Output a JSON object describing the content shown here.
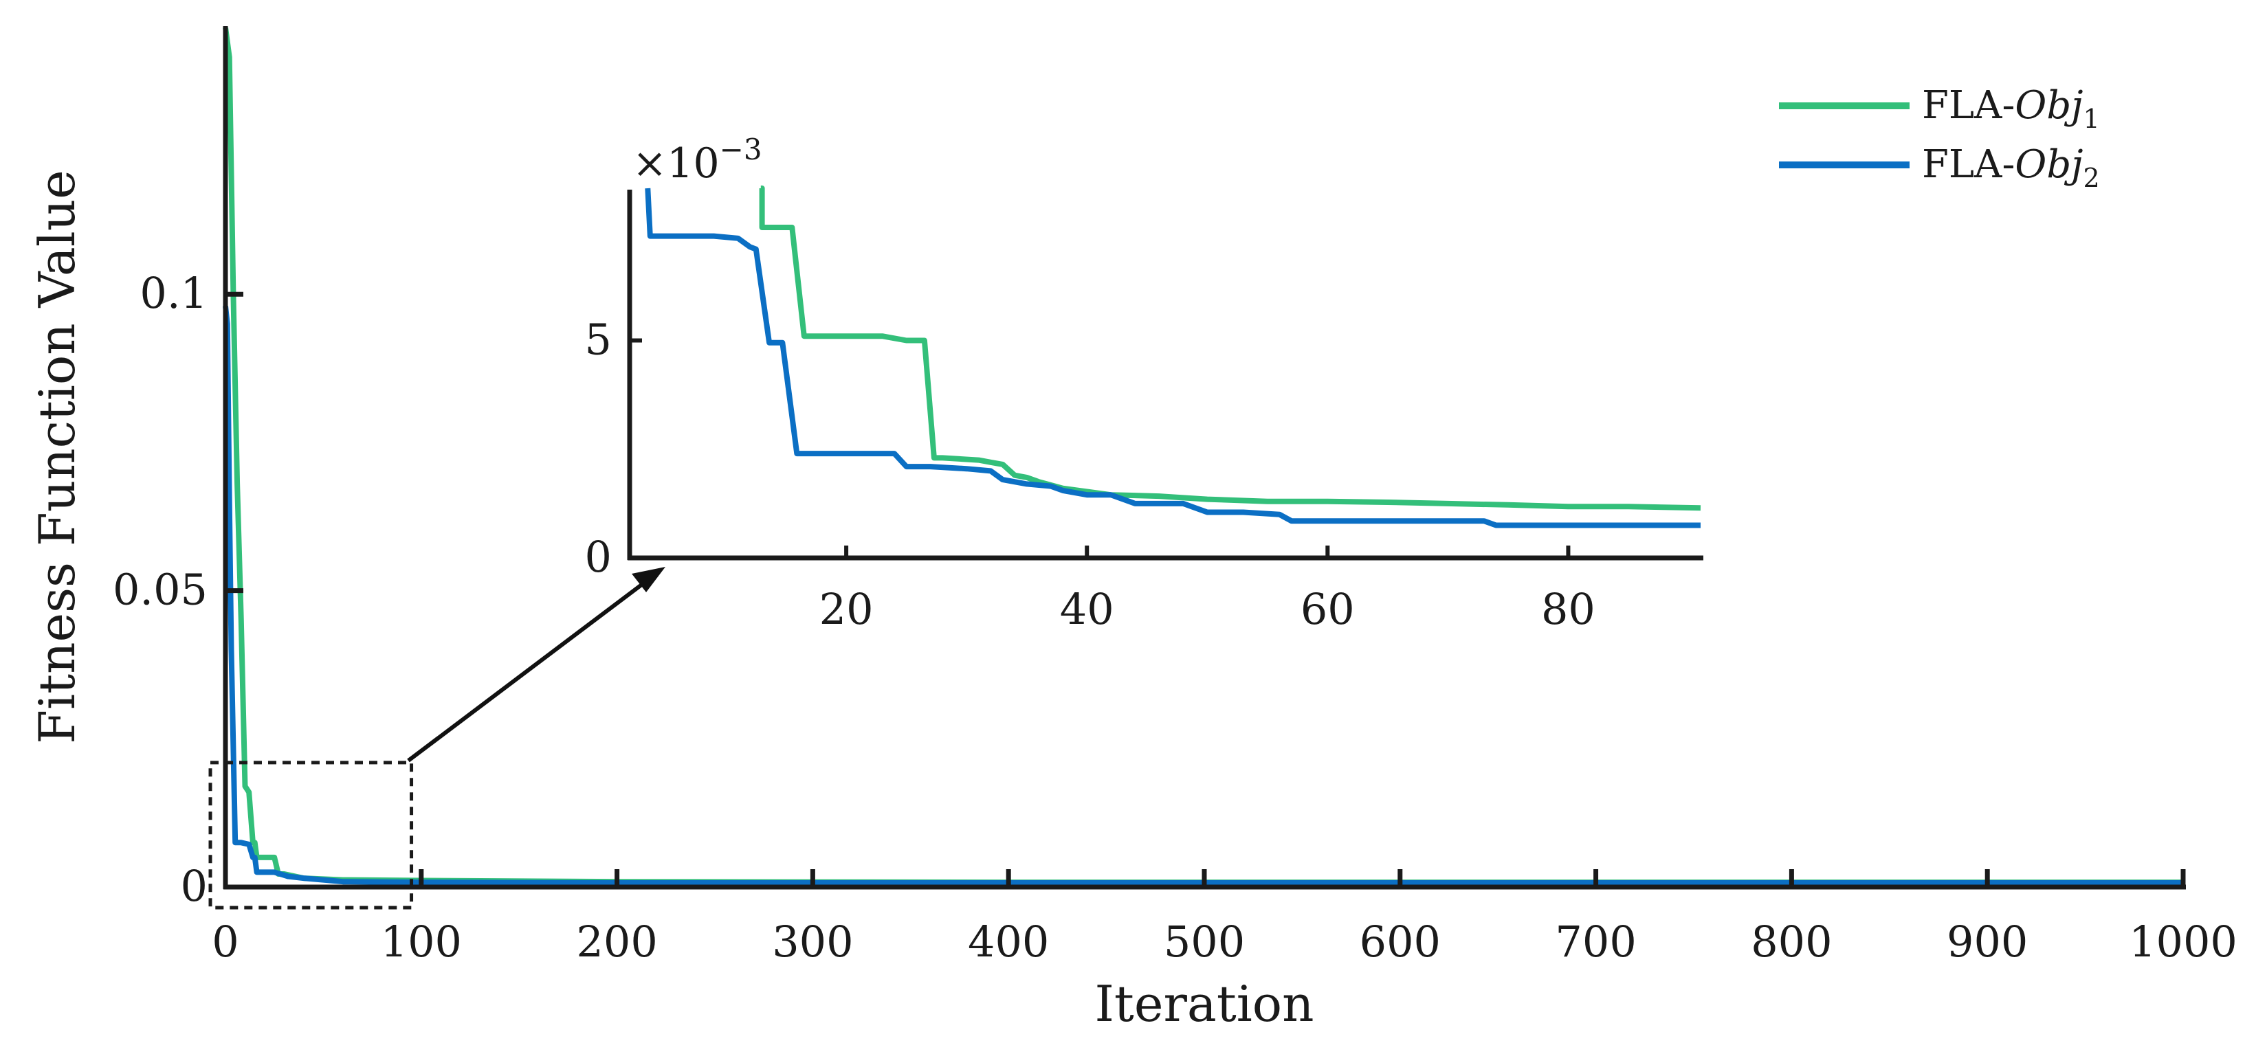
{
  "chart_data": [
    {
      "id": "main",
      "type": "line",
      "title": "",
      "xlabel": "Iteration",
      "ylabel": "Fitness Function Value",
      "xlim": [
        0,
        1000
      ],
      "ylim": [
        0,
        0.145
      ],
      "xticks": [
        0,
        100,
        200,
        300,
        400,
        500,
        600,
        700,
        800,
        900,
        1000
      ],
      "xtick_labels": [
        "0",
        "100",
        "200",
        "300",
        "400",
        "500",
        "600",
        "700",
        "800",
        "900",
        "1000"
      ],
      "yticks": [
        0,
        0.05,
        0.1
      ],
      "ytick_labels": [
        "0",
        "0.05",
        "0.1"
      ],
      "grid": false,
      "legend": {
        "position": "top-right",
        "entries": [
          {
            "name": "FLA-",
            "math": "Obj",
            "sub": "1",
            "color": "#33bf7a"
          },
          {
            "name": "FLA-",
            "math": "Obj",
            "sub": "2",
            "color": "#0b6fc4"
          }
        ]
      },
      "series": [
        {
          "name": "FLA-Obj1",
          "color": "#33bf7a",
          "x": [
            0,
            2,
            4,
            6,
            8,
            10,
            11,
            12,
            14,
            15,
            16,
            18,
            20,
            25,
            27,
            30,
            40,
            60,
            100,
            200,
            400,
            1000
          ],
          "y": [
            0.145,
            0.14,
            0.1,
            0.068,
            0.045,
            0.017,
            0.0165,
            0.016,
            0.0075,
            0.0075,
            0.005,
            0.005,
            0.005,
            0.005,
            0.0022,
            0.0022,
            0.0015,
            0.0012,
            0.0011,
            0.0009,
            0.0008,
            0.0008
          ]
        },
        {
          "name": "FLA-Obj2",
          "color": "#0b6fc4",
          "x": [
            0,
            1,
            2,
            3,
            5,
            6,
            8,
            12,
            14,
            15,
            16,
            20,
            25,
            32,
            40,
            60,
            100,
            200,
            400,
            1000
          ],
          "y": [
            0.098,
            0.095,
            0.065,
            0.04,
            0.0075,
            0.0075,
            0.0075,
            0.0072,
            0.005,
            0.005,
            0.0025,
            0.0025,
            0.0025,
            0.0018,
            0.0015,
            0.0009,
            0.0008,
            0.0007,
            0.0007,
            0.0007
          ]
        }
      ],
      "zoom_box": {
        "x_range": [
          0,
          95
        ],
        "y_range": [
          0,
          0.021
        ]
      }
    },
    {
      "id": "inset",
      "type": "line",
      "title": "",
      "xlabel": "",
      "ylabel": "",
      "exponent_label": "×10",
      "exponent_power": "−3",
      "xlim": [
        2,
        91
      ],
      "ylim": [
        0,
        8.5
      ],
      "xticks": [
        20,
        40,
        60,
        80
      ],
      "xtick_labels": [
        "20",
        "40",
        "60",
        "80"
      ],
      "yticks": [
        0,
        5
      ],
      "ytick_labels": [
        "0",
        "5"
      ],
      "series": [
        {
          "name": "FLA-Obj1",
          "color": "#33bf7a",
          "x": [
            12.9,
            13,
            13,
            15.5,
            16.5,
            23,
            25,
            26.5,
            27.3,
            28,
            31,
            32,
            33,
            34,
            35,
            36,
            38,
            42,
            46,
            50,
            55,
            60,
            65,
            70,
            75,
            80,
            85,
            91
          ],
          "y": [
            8.5,
            8.5,
            7.6,
            7.6,
            5.1,
            5.1,
            5.0,
            5.0,
            2.3,
            2.3,
            2.25,
            2.2,
            2.15,
            1.9,
            1.85,
            1.75,
            1.6,
            1.45,
            1.42,
            1.35,
            1.3,
            1.3,
            1.28,
            1.25,
            1.22,
            1.18,
            1.18,
            1.15
          ]
        },
        {
          "name": "FLA-Obj2",
          "color": "#0b6fc4",
          "x": [
            3.5,
            3.5,
            3.7,
            9,
            11,
            12,
            12.5,
            13.6,
            14.7,
            15.9,
            17,
            20,
            24,
            25,
            27,
            30,
            32,
            33,
            35,
            37,
            38,
            40,
            42,
            44,
            48,
            50,
            53,
            56,
            57,
            62,
            66,
            70,
            73,
            74,
            80,
            91
          ],
          "y": [
            8.5,
            8.5,
            7.4,
            7.4,
            7.35,
            7.15,
            7.1,
            4.95,
            4.95,
            2.4,
            2.4,
            2.4,
            2.4,
            2.1,
            2.1,
            2.05,
            2.0,
            1.8,
            1.7,
            1.65,
            1.55,
            1.45,
            1.45,
            1.25,
            1.25,
            1.05,
            1.05,
            1.0,
            0.85,
            0.85,
            0.85,
            0.85,
            0.85,
            0.75,
            0.75,
            0.75
          ]
        }
      ]
    }
  ]
}
